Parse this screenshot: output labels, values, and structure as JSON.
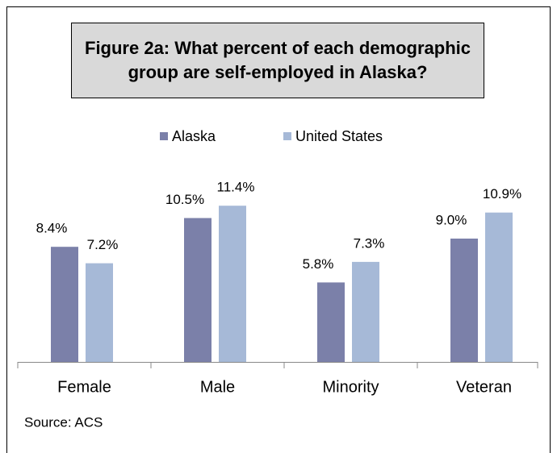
{
  "chart_data": {
    "type": "bar",
    "title": "Figure 2a: What percent of each demographic group are self-employed in Alaska?",
    "categories": [
      "Female",
      "Male",
      "Minority",
      "Veteran"
    ],
    "series": [
      {
        "name": "Alaska",
        "color": "#7b80a9",
        "values": [
          8.4,
          10.5,
          5.8,
          9.0
        ],
        "value_labels": [
          "8.4%",
          "10.5%",
          "5.8%",
          "9.0%"
        ]
      },
      {
        "name": "United States",
        "color": "#a6b9d7",
        "values": [
          7.2,
          11.4,
          7.3,
          10.9
        ],
        "value_labels": [
          "7.2%",
          "11.4%",
          "7.3%",
          "10.9%"
        ]
      }
    ],
    "ylim": [
      0,
      12
    ],
    "legend": "top",
    "source": "Source: ACS"
  }
}
